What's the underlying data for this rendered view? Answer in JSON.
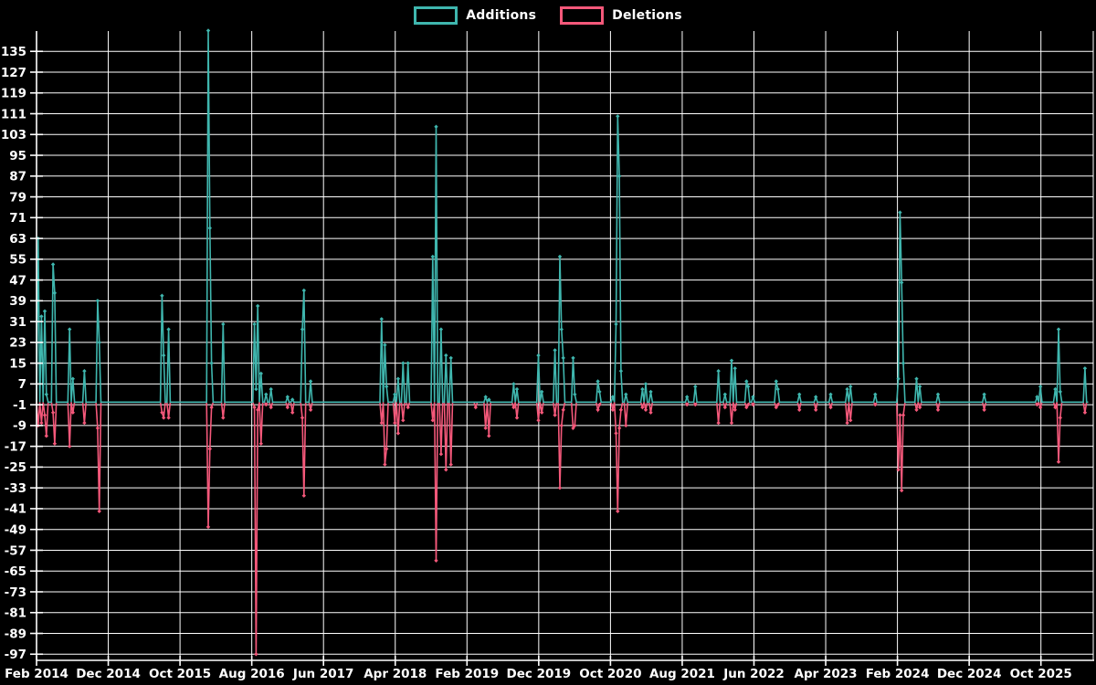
{
  "legend": {
    "additions_label": "Additions",
    "deletions_label": "Deletions"
  },
  "colors": {
    "background": "#000000",
    "grid": "#ffffff",
    "axis": "#ffffff",
    "tick_text": "#ffffff",
    "additions": "#3fb6ae",
    "deletions": "#f4587a"
  },
  "chart_data": {
    "type": "line",
    "title": "",
    "xlabel": "",
    "ylabel": "",
    "grid": true,
    "legend_position": "top-center",
    "x_axis": {
      "tick_labels": [
        "Feb 2014",
        "Dec 2014",
        "Oct 2015",
        "Aug 2016",
        "Jun 2017",
        "Apr 2018",
        "Feb 2019",
        "Dec 2019",
        "Oct 2020",
        "Aug 2021",
        "Jun 2022",
        "Apr 2023",
        "Feb 2024",
        "Dec 2024",
        "Oct 2025"
      ],
      "tick_interval_months": 10,
      "start_week": "2014-02-02",
      "total_weeks": 638
    },
    "y_axis": {
      "ticks": [
        135,
        127,
        119,
        111,
        103,
        95,
        87,
        79,
        71,
        63,
        55,
        47,
        39,
        31,
        23,
        15,
        7,
        -1,
        -9,
        -17,
        -25,
        -33,
        -41,
        -49,
        -57,
        -65,
        -73,
        -81,
        -89,
        -97
      ],
      "min": -99.5,
      "max": 142.8,
      "baseline_value": 0
    },
    "series": [
      {
        "name": "Additions",
        "sign": "positive"
      },
      {
        "name": "Deletions",
        "sign": "negative"
      }
    ],
    "note": "Weekly series; weeks not listed in events have additions 0 and deletions 0.",
    "events": [
      [
        1,
        "2014-02-09",
        63,
        -9
      ],
      [
        3,
        "2014-02-23",
        33,
        -8
      ],
      [
        5,
        "2014-03-09",
        35,
        -5
      ],
      [
        6,
        "2014-03-16",
        3,
        -13
      ],
      [
        10,
        "2014-04-13",
        53,
        -4
      ],
      [
        11,
        "2014-04-20",
        42,
        -16
      ],
      [
        20,
        "2014-06-22",
        28,
        -17
      ],
      [
        22,
        "2014-07-06",
        9,
        -4
      ],
      [
        29,
        "2014-08-24",
        12,
        -8
      ],
      [
        37,
        "2014-10-19",
        39,
        -10
      ],
      [
        38,
        "2014-10-26",
        23,
        -42
      ],
      [
        76,
        "2015-07-19",
        41,
        -4
      ],
      [
        77,
        "2015-07-26",
        18,
        -6
      ],
      [
        80,
        "2015-08-16",
        28,
        -6
      ],
      [
        104,
        "2016-01-31",
        143,
        -48
      ],
      [
        105,
        "2016-02-07",
        67,
        -18
      ],
      [
        106,
        "2016-02-14",
        15,
        -2
      ],
      [
        113,
        "2016-04-03",
        30,
        -6
      ],
      [
        132,
        "2016-08-14",
        30,
        -2
      ],
      [
        133,
        "2016-08-21",
        5,
        -97
      ],
      [
        134,
        "2016-08-28",
        37,
        -3
      ],
      [
        136,
        "2016-09-11",
        11,
        -16
      ],
      [
        139,
        "2016-10-02",
        3,
        -1
      ],
      [
        142,
        "2016-10-23",
        5,
        -2
      ],
      [
        152,
        "2017-01-01",
        2,
        -2
      ],
      [
        155,
        "2017-01-22",
        1,
        -4
      ],
      [
        161,
        "2017-03-05",
        28,
        -6
      ],
      [
        162,
        "2017-03-12",
        43,
        -36
      ],
      [
        166,
        "2017-04-09",
        8,
        -3
      ],
      [
        209,
        "2018-02-04",
        32,
        -8
      ],
      [
        211,
        "2018-02-18",
        22,
        -24
      ],
      [
        212,
        "2018-02-25",
        6,
        -18
      ],
      [
        217,
        "2018-04-01",
        3,
        -8
      ],
      [
        219,
        "2018-04-15",
        9,
        -12
      ],
      [
        222,
        "2018-05-06",
        15,
        -7
      ],
      [
        225,
        "2018-05-27",
        15,
        -2
      ],
      [
        240,
        "2018-09-09",
        56,
        -7
      ],
      [
        242,
        "2018-09-23",
        106,
        -61
      ],
      [
        245,
        "2018-10-14",
        28,
        -20
      ],
      [
        248,
        "2018-11-04",
        18,
        -26
      ],
      [
        251,
        "2018-11-25",
        17,
        -24
      ],
      [
        266,
        "2019-03-10",
        0,
        -2
      ],
      [
        272,
        "2019-04-21",
        2,
        -10
      ],
      [
        274,
        "2019-05-05",
        1,
        -13
      ],
      [
        289,
        "2019-08-18",
        7,
        -2
      ],
      [
        291,
        "2019-09-01",
        5,
        -6
      ],
      [
        304,
        "2019-12-01",
        18,
        -7
      ],
      [
        306,
        "2019-12-15",
        4,
        -4
      ],
      [
        314,
        "2020-02-09",
        20,
        -5
      ],
      [
        317,
        "2020-03-01",
        56,
        -33
      ],
      [
        318,
        "2020-03-08",
        28,
        -9
      ],
      [
        319,
        "2020-03-15",
        17,
        -3
      ],
      [
        325,
        "2020-04-26",
        17,
        -10
      ],
      [
        326,
        "2020-05-03",
        3,
        -9
      ],
      [
        340,
        "2020-08-09",
        8,
        -3
      ],
      [
        341,
        "2020-08-16",
        4,
        -1
      ],
      [
        349,
        "2020-10-11",
        2,
        -3
      ],
      [
        351,
        "2020-10-25",
        30,
        -12
      ],
      [
        352,
        "2020-11-01",
        110,
        -42
      ],
      [
        353,
        "2020-11-08",
        87,
        -10
      ],
      [
        354,
        "2020-11-15",
        12,
        -3
      ],
      [
        357,
        "2020-12-06",
        3,
        -9
      ],
      [
        367,
        "2021-02-14",
        5,
        -2
      ],
      [
        369,
        "2021-02-28",
        7,
        -3
      ],
      [
        372,
        "2021-03-21",
        4,
        -4
      ],
      [
        394,
        "2021-08-22",
        2,
        -1
      ],
      [
        399,
        "2021-09-26",
        6,
        -1
      ],
      [
        413,
        "2022-01-02",
        12,
        -8
      ],
      [
        417,
        "2022-01-30",
        3,
        -2
      ],
      [
        421,
        "2022-02-27",
        16,
        -8
      ],
      [
        423,
        "2022-03-13",
        13,
        -3
      ],
      [
        430,
        "2022-05-01",
        8,
        -2
      ],
      [
        431,
        "2022-05-08",
        6,
        -1
      ],
      [
        434,
        "2022-05-29",
        2,
        -1
      ],
      [
        448,
        "2022-09-04",
        8,
        -2
      ],
      [
        449,
        "2022-09-11",
        5,
        -1
      ],
      [
        462,
        "2022-12-11",
        3,
        -3
      ],
      [
        472,
        "2023-02-19",
        2,
        -3
      ],
      [
        481,
        "2023-04-23",
        3,
        -2
      ],
      [
        491,
        "2023-07-02",
        5,
        -8
      ],
      [
        493,
        "2023-07-16",
        6,
        -7
      ],
      [
        508,
        "2023-10-29",
        3,
        -1
      ],
      [
        522,
        "2024-02-04",
        9,
        -26
      ],
      [
        523,
        "2024-02-11",
        73,
        -5
      ],
      [
        524,
        "2024-02-18",
        46,
        -34
      ],
      [
        525,
        "2024-02-25",
        15,
        -5
      ],
      [
        533,
        "2024-04-21",
        9,
        -3
      ],
      [
        535,
        "2024-05-05",
        6,
        -2
      ],
      [
        546,
        "2024-07-21",
        3,
        -3
      ],
      [
        574,
        "2025-02-02",
        3,
        -3
      ],
      [
        606,
        "2025-09-14",
        2,
        -1
      ],
      [
        608,
        "2025-09-28",
        6,
        -2
      ],
      [
        617,
        "2025-11-30",
        5,
        -2
      ],
      [
        619,
        "2025-12-14",
        28,
        -23
      ],
      [
        620,
        "2025-12-21",
        4,
        -6
      ],
      [
        635,
        "2026-04-05",
        13,
        -4
      ]
    ]
  }
}
